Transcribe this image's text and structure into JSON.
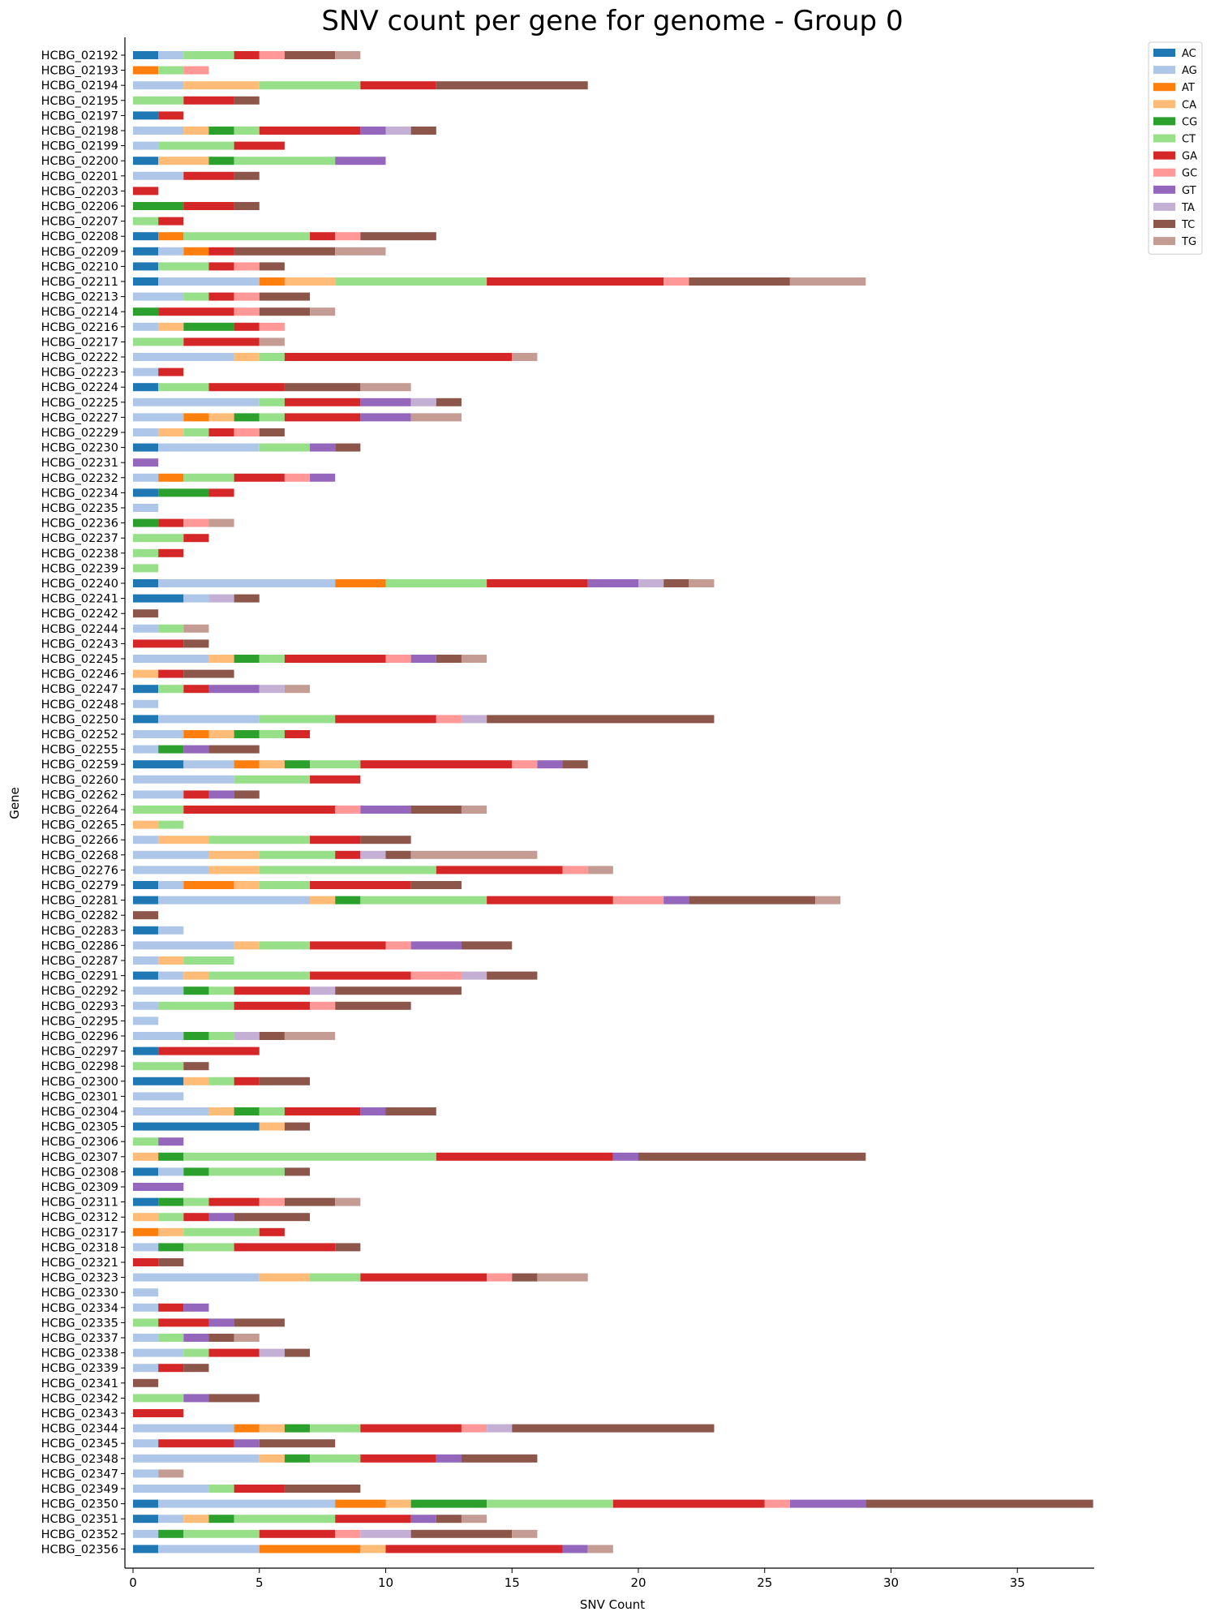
{
  "chart_data": {
    "type": "bar",
    "orientation": "horizontal",
    "stacked": true,
    "title": "SNV count per gene for genome - Group 0",
    "xlabel": "SNV Count",
    "ylabel": "Gene",
    "xlim": [
      0,
      38
    ],
    "xticks": [
      0,
      5,
      10,
      15,
      20,
      25,
      30,
      35
    ],
    "legend_position": "top-right",
    "grid": false,
    "series_order": [
      "AC",
      "AG",
      "AT",
      "CA",
      "CG",
      "CT",
      "GA",
      "GC",
      "GT",
      "TA",
      "TC",
      "TG"
    ],
    "colors": {
      "AC": "#1f77b4",
      "AG": "#aec7e8",
      "AT": "#ff7f0e",
      "CA": "#ffbb78",
      "CG": "#2ca02c",
      "CT": "#98df8a",
      "GA": "#d62728",
      "GC": "#ff9896",
      "GT": "#9467bd",
      "TA": "#c5b0d5",
      "TC": "#8c564b",
      "TG": "#c49c94"
    },
    "genes": [
      {
        "name": "HCBG_02192",
        "counts": {
          "AC": 1,
          "AG": 1,
          "CT": 2,
          "GA": 1,
          "GC": 1,
          "TC": 2,
          "TG": 1
        }
      },
      {
        "name": "HCBG_02193",
        "counts": {
          "AT": 1,
          "CT": 1,
          "GC": 1
        }
      },
      {
        "name": "HCBG_02194",
        "counts": {
          "AG": 2,
          "CA": 3,
          "CT": 4,
          "GA": 3,
          "TC": 6
        }
      },
      {
        "name": "HCBG_02195",
        "counts": {
          "CT": 2,
          "GA": 2,
          "TC": 1
        }
      },
      {
        "name": "HCBG_02197",
        "counts": {
          "AC": 1,
          "GA": 1
        }
      },
      {
        "name": "HCBG_02198",
        "counts": {
          "AG": 2,
          "CA": 1,
          "CG": 1,
          "CT": 1,
          "GA": 4,
          "GT": 1,
          "TA": 1,
          "TC": 1
        }
      },
      {
        "name": "HCBG_02199",
        "counts": {
          "AG": 1,
          "CT": 3,
          "GA": 2
        }
      },
      {
        "name": "HCBG_02200",
        "counts": {
          "AC": 1,
          "CA": 2,
          "CG": 1,
          "CT": 4,
          "GT": 2
        }
      },
      {
        "name": "HCBG_02201",
        "counts": {
          "AG": 2,
          "GA": 2,
          "TC": 1
        }
      },
      {
        "name": "HCBG_02203",
        "counts": {
          "GA": 1
        }
      },
      {
        "name": "HCBG_02206",
        "counts": {
          "CG": 2,
          "GA": 2,
          "TC": 1
        }
      },
      {
        "name": "HCBG_02207",
        "counts": {
          "CT": 1,
          "GA": 1
        }
      },
      {
        "name": "HCBG_02208",
        "counts": {
          "AC": 1,
          "AT": 1,
          "CT": 5,
          "GA": 1,
          "GC": 1,
          "TC": 3
        }
      },
      {
        "name": "HCBG_02209",
        "counts": {
          "AC": 1,
          "AG": 1,
          "AT": 1,
          "GA": 1,
          "TC": 4,
          "TG": 2
        }
      },
      {
        "name": "HCBG_02210",
        "counts": {
          "AC": 1,
          "CT": 2,
          "GA": 1,
          "GC": 1,
          "TC": 1
        }
      },
      {
        "name": "HCBG_02211",
        "counts": {
          "AC": 1,
          "AG": 4,
          "AT": 1,
          "CA": 2,
          "CT": 6,
          "GA": 7,
          "GC": 1,
          "TC": 4,
          "TG": 3
        }
      },
      {
        "name": "HCBG_02213",
        "counts": {
          "AG": 2,
          "CT": 1,
          "GA": 1,
          "GC": 1,
          "TC": 2
        }
      },
      {
        "name": "HCBG_02214",
        "counts": {
          "CG": 1,
          "GA": 3,
          "GC": 1,
          "TC": 2,
          "TG": 1
        }
      },
      {
        "name": "HCBG_02216",
        "counts": {
          "AG": 1,
          "CA": 1,
          "CG": 2,
          "GA": 1,
          "GC": 1
        }
      },
      {
        "name": "HCBG_02217",
        "counts": {
          "CT": 2,
          "GA": 3,
          "TG": 1
        }
      },
      {
        "name": "HCBG_02222",
        "counts": {
          "AG": 4,
          "CA": 1,
          "CT": 1,
          "GA": 9,
          "TG": 1
        }
      },
      {
        "name": "HCBG_02223",
        "counts": {
          "AG": 1,
          "GA": 1
        }
      },
      {
        "name": "HCBG_02224",
        "counts": {
          "AC": 1,
          "CT": 2,
          "GA": 3,
          "TC": 3,
          "TG": 2
        }
      },
      {
        "name": "HCBG_02225",
        "counts": {
          "AG": 5,
          "CT": 1,
          "GA": 3,
          "GT": 2,
          "TA": 1,
          "TC": 1
        }
      },
      {
        "name": "HCBG_02227",
        "counts": {
          "AG": 2,
          "AT": 1,
          "CA": 1,
          "CG": 1,
          "CT": 1,
          "GA": 3,
          "GT": 2,
          "TG": 2
        }
      },
      {
        "name": "HCBG_02229",
        "counts": {
          "AG": 1,
          "CA": 1,
          "CT": 1,
          "GA": 1,
          "GC": 1,
          "TC": 1
        }
      },
      {
        "name": "HCBG_02230",
        "counts": {
          "AC": 1,
          "AG": 4,
          "CT": 2,
          "GT": 1,
          "TC": 1
        }
      },
      {
        "name": "HCBG_02231",
        "counts": {
          "GT": 1
        }
      },
      {
        "name": "HCBG_02232",
        "counts": {
          "AG": 1,
          "AT": 1,
          "CT": 2,
          "GA": 2,
          "GC": 1,
          "GT": 1
        }
      },
      {
        "name": "HCBG_02234",
        "counts": {
          "AC": 1,
          "CG": 2,
          "GA": 1
        }
      },
      {
        "name": "HCBG_02235",
        "counts": {
          "AG": 1
        }
      },
      {
        "name": "HCBG_02236",
        "counts": {
          "CG": 1,
          "GA": 1,
          "GC": 1,
          "TG": 1
        }
      },
      {
        "name": "HCBG_02237",
        "counts": {
          "CT": 2,
          "GA": 1
        }
      },
      {
        "name": "HCBG_02238",
        "counts": {
          "CT": 1,
          "GA": 1
        }
      },
      {
        "name": "HCBG_02239",
        "counts": {
          "CT": 1
        }
      },
      {
        "name": "HCBG_02240",
        "counts": {
          "AC": 1,
          "AG": 7,
          "AT": 2,
          "CT": 4,
          "GA": 4,
          "GT": 2,
          "TA": 1,
          "TC": 1,
          "TG": 1
        }
      },
      {
        "name": "HCBG_02241",
        "counts": {
          "AC": 2,
          "AG": 1,
          "TA": 1,
          "TC": 1
        }
      },
      {
        "name": "HCBG_02242",
        "counts": {
          "TC": 1
        }
      },
      {
        "name": "HCBG_02244",
        "counts": {
          "AG": 1,
          "CT": 1,
          "TG": 1
        }
      },
      {
        "name": "HCBG_02243",
        "counts": {
          "GA": 2,
          "TC": 1
        }
      },
      {
        "name": "HCBG_02245",
        "counts": {
          "AG": 3,
          "CA": 1,
          "CG": 1,
          "CT": 1,
          "GA": 4,
          "GC": 1,
          "GT": 1,
          "TC": 1,
          "TG": 1
        }
      },
      {
        "name": "HCBG_02246",
        "counts": {
          "CA": 1,
          "GA": 1,
          "TC": 2
        }
      },
      {
        "name": "HCBG_02247",
        "counts": {
          "AC": 1,
          "CT": 1,
          "GA": 1,
          "GT": 2,
          "TA": 1,
          "TG": 1
        }
      },
      {
        "name": "HCBG_02248",
        "counts": {
          "AG": 1
        }
      },
      {
        "name": "HCBG_02250",
        "counts": {
          "AC": 1,
          "AG": 4,
          "CT": 3,
          "GA": 4,
          "GC": 1,
          "TA": 1,
          "TC": 9
        }
      },
      {
        "name": "HCBG_02252",
        "counts": {
          "AG": 2,
          "AT": 1,
          "CA": 1,
          "CG": 1,
          "CT": 1,
          "GA": 1
        }
      },
      {
        "name": "HCBG_02255",
        "counts": {
          "AG": 1,
          "CG": 1,
          "GT": 1,
          "TC": 2
        }
      },
      {
        "name": "HCBG_02259",
        "counts": {
          "AC": 2,
          "AG": 2,
          "AT": 1,
          "CA": 1,
          "CG": 1,
          "CT": 2,
          "GA": 6,
          "GC": 1,
          "GT": 1,
          "TC": 1
        }
      },
      {
        "name": "HCBG_02260",
        "counts": {
          "AG": 4,
          "CT": 3,
          "GA": 2
        }
      },
      {
        "name": "HCBG_02262",
        "counts": {
          "AG": 2,
          "GA": 1,
          "GT": 1,
          "TC": 1
        }
      },
      {
        "name": "HCBG_02264",
        "counts": {
          "CT": 2,
          "GA": 6,
          "GC": 1,
          "GT": 2,
          "TC": 2,
          "TG": 1
        }
      },
      {
        "name": "HCBG_02265",
        "counts": {
          "CA": 1,
          "CT": 1
        }
      },
      {
        "name": "HCBG_02266",
        "counts": {
          "AG": 1,
          "CA": 2,
          "CT": 4,
          "GA": 2,
          "TC": 2
        }
      },
      {
        "name": "HCBG_02268",
        "counts": {
          "AG": 3,
          "CA": 2,
          "CT": 3,
          "GA": 1,
          "TA": 1,
          "TC": 1,
          "TG": 5
        }
      },
      {
        "name": "HCBG_02276",
        "counts": {
          "AG": 3,
          "CA": 2,
          "CT": 7,
          "GA": 5,
          "GC": 1,
          "TG": 1
        }
      },
      {
        "name": "HCBG_02279",
        "counts": {
          "AC": 1,
          "AG": 1,
          "AT": 2,
          "CA": 1,
          "CT": 2,
          "GA": 4,
          "TC": 2
        }
      },
      {
        "name": "HCBG_02281",
        "counts": {
          "AC": 1,
          "AG": 6,
          "CA": 1,
          "CG": 1,
          "CT": 5,
          "GA": 5,
          "GC": 2,
          "GT": 1,
          "TC": 5,
          "TG": 1
        }
      },
      {
        "name": "HCBG_02282",
        "counts": {
          "TC": 1
        }
      },
      {
        "name": "HCBG_02283",
        "counts": {
          "AC": 1,
          "AG": 1
        }
      },
      {
        "name": "HCBG_02286",
        "counts": {
          "AG": 4,
          "CA": 1,
          "CT": 2,
          "GA": 3,
          "GC": 1,
          "GT": 2,
          "TC": 2
        }
      },
      {
        "name": "HCBG_02287",
        "counts": {
          "AG": 1,
          "CA": 1,
          "CT": 2
        }
      },
      {
        "name": "HCBG_02291",
        "counts": {
          "AC": 1,
          "AG": 1,
          "CA": 1,
          "CT": 4,
          "GA": 4,
          "GC": 2,
          "TA": 1,
          "TC": 2
        }
      },
      {
        "name": "HCBG_02292",
        "counts": {
          "AG": 2,
          "CG": 1,
          "CT": 1,
          "GA": 3,
          "TA": 1,
          "TC": 5
        }
      },
      {
        "name": "HCBG_02293",
        "counts": {
          "AG": 1,
          "CT": 3,
          "GA": 3,
          "GC": 1,
          "TC": 3
        }
      },
      {
        "name": "HCBG_02295",
        "counts": {
          "AG": 1
        }
      },
      {
        "name": "HCBG_02296",
        "counts": {
          "AG": 2,
          "CG": 1,
          "CT": 1,
          "TA": 1,
          "TC": 1,
          "TG": 2
        }
      },
      {
        "name": "HCBG_02297",
        "counts": {
          "AC": 1,
          "GA": 4
        }
      },
      {
        "name": "HCBG_02298",
        "counts": {
          "CT": 2,
          "TC": 1
        }
      },
      {
        "name": "HCBG_02300",
        "counts": {
          "AC": 2,
          "CA": 1,
          "CT": 1,
          "GA": 1,
          "TC": 2
        }
      },
      {
        "name": "HCBG_02301",
        "counts": {
          "AG": 2
        }
      },
      {
        "name": "HCBG_02304",
        "counts": {
          "AG": 3,
          "CA": 1,
          "CG": 1,
          "CT": 1,
          "GA": 3,
          "GT": 1,
          "TC": 2
        }
      },
      {
        "name": "HCBG_02305",
        "counts": {
          "AC": 5,
          "CA": 1,
          "TC": 1
        }
      },
      {
        "name": "HCBG_02306",
        "counts": {
          "CT": 1,
          "GT": 1
        }
      },
      {
        "name": "HCBG_02307",
        "counts": {
          "CA": 1,
          "CG": 1,
          "CT": 10,
          "GA": 7,
          "GT": 1,
          "TC": 9
        }
      },
      {
        "name": "HCBG_02308",
        "counts": {
          "AC": 1,
          "AG": 1,
          "CG": 1,
          "CT": 3,
          "TC": 1
        }
      },
      {
        "name": "HCBG_02309",
        "counts": {
          "GT": 2
        }
      },
      {
        "name": "HCBG_02311",
        "counts": {
          "AC": 1,
          "CG": 1,
          "CT": 1,
          "GA": 2,
          "GC": 1,
          "TC": 2,
          "TG": 1
        }
      },
      {
        "name": "HCBG_02312",
        "counts": {
          "CA": 1,
          "CT": 1,
          "GA": 1,
          "GT": 1,
          "TC": 3
        }
      },
      {
        "name": "HCBG_02317",
        "counts": {
          "AT": 1,
          "CA": 1,
          "CT": 3,
          "GA": 1
        }
      },
      {
        "name": "HCBG_02318",
        "counts": {
          "AG": 1,
          "CG": 1,
          "CT": 2,
          "GA": 4,
          "TC": 1
        }
      },
      {
        "name": "HCBG_02321",
        "counts": {
          "GA": 1,
          "TC": 1
        }
      },
      {
        "name": "HCBG_02323",
        "counts": {
          "AG": 5,
          "CA": 2,
          "CT": 2,
          "GA": 5,
          "GC": 1,
          "TC": 1,
          "TG": 2
        }
      },
      {
        "name": "HCBG_02330",
        "counts": {
          "AG": 1
        }
      },
      {
        "name": "HCBG_02334",
        "counts": {
          "AG": 1,
          "GA": 1,
          "GT": 1
        }
      },
      {
        "name": "HCBG_02335",
        "counts": {
          "CT": 1,
          "GA": 2,
          "GT": 1,
          "TC": 2
        }
      },
      {
        "name": "HCBG_02337",
        "counts": {
          "AG": 1,
          "CT": 1,
          "GT": 1,
          "TC": 1,
          "TG": 1
        }
      },
      {
        "name": "HCBG_02338",
        "counts": {
          "AG": 2,
          "CT": 1,
          "GA": 2,
          "TA": 1,
          "TC": 1
        }
      },
      {
        "name": "HCBG_02339",
        "counts": {
          "AG": 1,
          "GA": 1,
          "TC": 1
        }
      },
      {
        "name": "HCBG_02341",
        "counts": {
          "TC": 1
        }
      },
      {
        "name": "HCBG_02342",
        "counts": {
          "CT": 2,
          "GT": 1,
          "TC": 2
        }
      },
      {
        "name": "HCBG_02343",
        "counts": {
          "GA": 2
        }
      },
      {
        "name": "HCBG_02344",
        "counts": {
          "AG": 4,
          "AT": 1,
          "CA": 1,
          "CG": 1,
          "CT": 2,
          "GA": 4,
          "GC": 1,
          "TA": 1,
          "TC": 8
        }
      },
      {
        "name": "HCBG_02345",
        "counts": {
          "AG": 1,
          "GA": 3,
          "GT": 1,
          "TC": 3
        }
      },
      {
        "name": "HCBG_02348",
        "counts": {
          "AG": 5,
          "CA": 1,
          "CG": 1,
          "CT": 2,
          "GA": 3,
          "GT": 1,
          "TC": 3
        }
      },
      {
        "name": "HCBG_02347",
        "counts": {
          "AG": 1,
          "TG": 1
        }
      },
      {
        "name": "HCBG_02349",
        "counts": {
          "AG": 3,
          "CT": 1,
          "GA": 2,
          "TC": 3
        }
      },
      {
        "name": "HCBG_02350",
        "counts": {
          "AC": 1,
          "AG": 7,
          "AT": 2,
          "CA": 1,
          "CG": 3,
          "CT": 5,
          "GA": 6,
          "GC": 1,
          "GT": 3,
          "TC": 9
        }
      },
      {
        "name": "HCBG_02351",
        "counts": {
          "AC": 1,
          "AG": 1,
          "CA": 1,
          "CG": 1,
          "CT": 4,
          "GA": 3,
          "GT": 1,
          "TC": 1,
          "TG": 1
        }
      },
      {
        "name": "HCBG_02352",
        "counts": {
          "AG": 1,
          "CG": 1,
          "CT": 3,
          "GA": 3,
          "GC": 1,
          "TA": 2,
          "TC": 4,
          "TG": 1
        }
      },
      {
        "name": "HCBG_02356",
        "counts": {
          "AC": 1,
          "AG": 4,
          "AT": 4,
          "CA": 1,
          "GA": 7,
          "GT": 1,
          "TG": 1
        }
      }
    ]
  }
}
